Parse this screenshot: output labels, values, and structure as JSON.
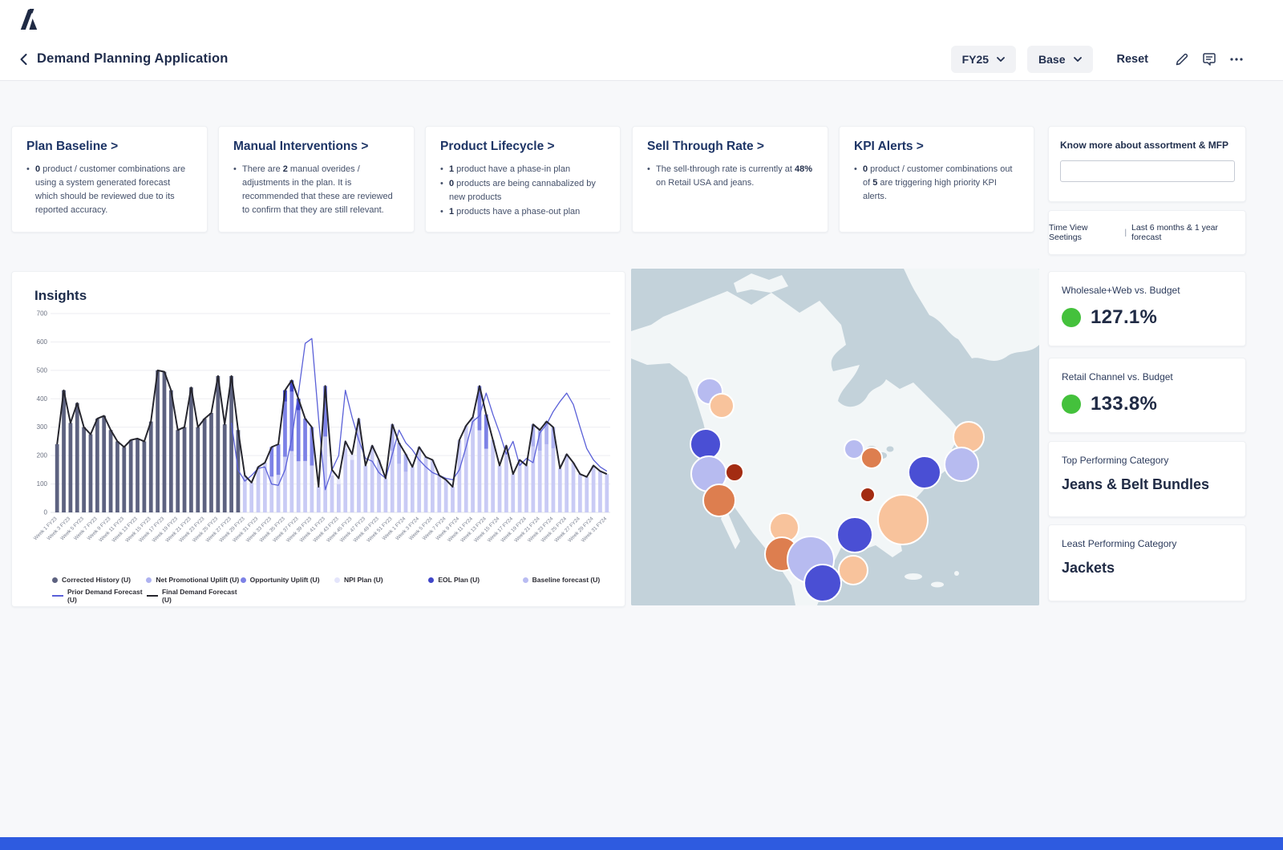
{
  "brand": {
    "logo_letter": "A"
  },
  "header": {
    "title": "Demand Planning Application",
    "fy_selector": "FY25",
    "scenario_selector": "Base",
    "reset_label": "Reset"
  },
  "cards": [
    {
      "title": "Plan Baseline >",
      "bullets": [
        {
          "pre": "",
          "b1": "0",
          "mid": " product / customer combinations are using a system generated forecast which should be reviewed due to its reported accuracy.",
          "b2": "",
          "post": ""
        }
      ]
    },
    {
      "title": "Manual Interventions >",
      "bullets": [
        {
          "pre": "There are ",
          "b1": "2",
          "mid": " manual overides / adjustments in the plan. It is recommended that these are reviewed to confirm that they are still relevant.",
          "b2": "",
          "post": ""
        }
      ]
    },
    {
      "title": "Product Lifecycle >",
      "bullets": [
        {
          "pre": "",
          "b1": "1",
          "mid": " product  have a phase-in plan",
          "b2": "",
          "post": ""
        },
        {
          "pre": "",
          "b1": "0",
          "mid": " products are being cannabalized by new products",
          "b2": "",
          "post": ""
        },
        {
          "pre": "",
          "b1": "1",
          "mid": " products have a phase-out plan",
          "b2": "",
          "post": ""
        }
      ]
    },
    {
      "title": "Sell Through Rate >",
      "bullets": [
        {
          "pre": "The sell-through rate is currently at ",
          "b1": "48%",
          "mid": " on Retail USA and jeans.",
          "b2": "",
          "post": ""
        }
      ]
    },
    {
      "title": "KPI Alerts >",
      "bullets": [
        {
          "pre": "",
          "b1": "0",
          "mid": " product / customer combinations out of ",
          "b2": "5",
          "post": " are triggering high priority KPI alerts."
        }
      ]
    }
  ],
  "side_top": {
    "know_more_label": "Know more about assortment & MFP",
    "input_value": "",
    "input_placeholder": "",
    "time_view_label": "Time View Seetings",
    "time_view_sep": "|",
    "time_view_value": "Last 6 months & 1 year forecast"
  },
  "insights": {
    "title": "Insights"
  },
  "chart_data": {
    "type": "bar",
    "title": "Insights",
    "ylim": [
      0,
      700
    ],
    "ytick_step": 100,
    "grid": true,
    "legend_position": "bottom",
    "categories": [
      "Week 1 FY23",
      "Week 2 FY23",
      "Week 3 FY23",
      "Week 4 FY23",
      "Week 5 FY23",
      "Week 6 FY23",
      "Week 7 FY23",
      "Week 8 FY23",
      "Week 9 FY23",
      "Week 10 FY23",
      "Week 11 FY23",
      "Week 12 FY23",
      "Week 13 FY23",
      "Week 14 FY23",
      "Week 15 FY23",
      "Week 16 FY23",
      "Week 17 FY23",
      "Week 18 FY23",
      "Week 19 FY23",
      "Week 20 FY23",
      "Week 21 FY23",
      "Week 22 FY23",
      "Week 23 FY23",
      "Week 24 FY23",
      "Week 25 FY23",
      "Week 26 FY23",
      "Week 27 FY23",
      "Week 28 FY23",
      "Week 29 FY23",
      "Week 30 FY23",
      "Week 31 FY23",
      "Week 32 FY23",
      "Week 33 FY23",
      "Week 34 FY23",
      "Week 35 FY23",
      "Week 36 FY23",
      "Week 37 FY23",
      "Week 38 FY23",
      "Week 39 FY23",
      "Week 40 FY23",
      "Week 41 FY23",
      "Week 42 FY23",
      "Week 43 FY23",
      "Week 44 FY23",
      "Week 45 FY23",
      "Week 46 FY23",
      "Week 47 FY23",
      "Week 48 FY23",
      "Week 49 FY23",
      "Week 50 FY23",
      "Week 51 FY23",
      "Week 52 FY23",
      "Week 1 FY24",
      "Week 2 FY24",
      "Week 3 FY24",
      "Week 4 FY24",
      "Week 5 FY24",
      "Week 6 FY24",
      "Week 7 FY24",
      "Week 8 FY24",
      "Week 9 FY24",
      "Week 10 FY24",
      "Week 11 FY24",
      "Week 12 FY24",
      "Week 13 FY24",
      "Week 14 FY24",
      "Week 15 FY24",
      "Week 16 FY24",
      "Week 17 FY24",
      "Week 18 FY24",
      "Week 19 FY24",
      "Week 20 FY24",
      "Week 21 FY24",
      "Week 22 FY24",
      "Week 23 FY24",
      "Week 24 FY24",
      "Week 25 FY24",
      "Week 26 FY24",
      "Week 27 FY24",
      "Week 28 FY24",
      "Week 29 FY24",
      "Week 30 FY24",
      "Week 31 FY24"
    ],
    "tick_every": 2,
    "series": [
      {
        "name": "Corrected History (U)",
        "type": "bar",
        "color": "#5d6280",
        "values": [
          240,
          430,
          315,
          385,
          300,
          275,
          330,
          340,
          290,
          250,
          230,
          255,
          260,
          250,
          320,
          500,
          495,
          430,
          290,
          300,
          440,
          300,
          330,
          350,
          480,
          310,
          480,
          290,
          null,
          null,
          null,
          null,
          null,
          null,
          null,
          null,
          null,
          null,
          null,
          null,
          null,
          null,
          null,
          null,
          null,
          null,
          null,
          null,
          null,
          null,
          null,
          null,
          null,
          null,
          null,
          null,
          null,
          null,
          null,
          null,
          null,
          null,
          null,
          null,
          null,
          null,
          null,
          null,
          null,
          null,
          null,
          null,
          null,
          null,
          null,
          null,
          null,
          null,
          null,
          null,
          null,
          null,
          null
        ]
      },
      {
        "name": "Baseline forecast (U)",
        "type": "bar",
        "color": "#c9cbf5",
        "values": [
          null,
          null,
          null,
          null,
          null,
          null,
          null,
          null,
          null,
          null,
          null,
          null,
          null,
          null,
          null,
          null,
          null,
          null,
          null,
          null,
          null,
          null,
          null,
          null,
          null,
          null,
          null,
          null,
          130,
          105,
          160,
          175,
          126,
          132,
          196,
          216,
          180,
          181,
          165,
          90,
          267,
          130,
          100,
          225,
          185,
          330,
          165,
          235,
          185,
          120,
          217,
          171,
          143,
          160,
          230,
          195,
          185,
          130,
          115,
          90,
          255,
          305,
          335,
          289,
          224,
          255,
          165,
          235,
          135,
          185,
          165,
          232,
          217,
          240,
          225,
          155,
          205,
          175,
          135,
          125,
          165,
          145,
          135
        ]
      },
      {
        "name": "Net Promotional Uplift (U)",
        "type": "bar",
        "color": "#aeb2f0",
        "sparse": {
          "50": 93,
          "51": 74,
          "52": 62,
          "71": 78,
          "72": 73,
          "73": 80,
          "74": 75
        }
      },
      {
        "name": "Opportunity Uplift (U)",
        "type": "bar",
        "color": "#7d82e6",
        "sparse": {
          "32": 104,
          "33": 108,
          "34": 194,
          "35": 209,
          "36": 180,
          "37": 149,
          "38": 135,
          "40": 178,
          "63": 156,
          "64": 121
        }
      },
      {
        "name": "NPI Plan (U)",
        "type": "bar",
        "color": "#e4e5fb",
        "sparse": {
          "41": 20,
          "42": 20,
          "43": 25,
          "44": 20
        }
      },
      {
        "name": "EOL Plan (U)",
        "type": "bar",
        "color": "#4046c8",
        "sparse": {
          "34": 40,
          "35": 40,
          "36": 40
        }
      },
      {
        "name": "Prior Demand Forecast (U)",
        "type": "line",
        "color": "#5a60d8",
        "values": [
          null,
          null,
          null,
          null,
          null,
          null,
          null,
          null,
          null,
          null,
          null,
          null,
          null,
          null,
          null,
          null,
          null,
          null,
          null,
          null,
          null,
          null,
          null,
          null,
          null,
          null,
          315,
          150,
          110,
          130,
          155,
          160,
          100,
          95,
          150,
          260,
          420,
          595,
          612,
          330,
          80,
          150,
          200,
          430,
          335,
          255,
          190,
          180,
          140,
          120,
          205,
          290,
          245,
          220,
          185,
          160,
          140,
          130,
          120,
          115,
          150,
          230,
          320,
          340,
          420,
          345,
          280,
          205,
          250,
          165,
          190,
          175,
          280,
          310,
          355,
          390,
          420,
          380,
          300,
          225,
          185,
          160,
          145
        ]
      },
      {
        "name": "Final Demand Forecast (U)",
        "type": "line",
        "color": "#26262e",
        "values": [
          240,
          430,
          315,
          385,
          300,
          275,
          330,
          340,
          290,
          250,
          230,
          255,
          260,
          250,
          320,
          500,
          495,
          430,
          290,
          300,
          440,
          300,
          330,
          350,
          480,
          310,
          480,
          290,
          130,
          105,
          160,
          175,
          230,
          240,
          430,
          465,
          400,
          330,
          300,
          90,
          445,
          150,
          120,
          250,
          205,
          330,
          165,
          235,
          185,
          120,
          310,
          245,
          205,
          160,
          230,
          195,
          185,
          130,
          115,
          90,
          255,
          305,
          335,
          445,
          345,
          255,
          165,
          235,
          135,
          185,
          165,
          310,
          290,
          320,
          300,
          155,
          205,
          175,
          135,
          125,
          165,
          145,
          135
        ]
      }
    ],
    "legend_row1": [
      {
        "label": "Corrected History (U)",
        "color": "#5d6280",
        "swatch": "dot"
      },
      {
        "label": "Net Promotional Uplift (U)",
        "color": "#aeb2f0",
        "swatch": "dot"
      },
      {
        "label": "Opportunity Uplift (U)",
        "color": "#7d82e6",
        "swatch": "dot"
      },
      {
        "label": "NPI Plan (U)",
        "color": "#e4e5fb",
        "swatch": "dot"
      },
      {
        "label": "EOL Plan (U)",
        "color": "#4046c8",
        "swatch": "dot"
      },
      {
        "label": "Baseline forecast (U)",
        "color": "#b9bcf2",
        "swatch": "dot"
      }
    ],
    "legend_row2": [
      {
        "label": "Prior Demand Forecast (U)",
        "color": "#5a60d8",
        "swatch": "line"
      },
      {
        "label": "Final Demand Forecast (U)",
        "color": "#26262e",
        "swatch": "line"
      }
    ]
  },
  "map": {
    "sea_color": "#c3d2da",
    "land_color": "#f2f6f7",
    "bubble_colors": {
      "blue": "#4a4fd4",
      "lightPurple": "#b7bbf0",
      "peach": "#f8c39c",
      "orange": "#dd7e4f",
      "darkRed": "#a32c12"
    },
    "bubbles": [
      {
        "x": 98,
        "y": 153,
        "r": 16,
        "c": "lightPurple"
      },
      {
        "x": 113,
        "y": 171,
        "r": 15,
        "c": "peach"
      },
      {
        "x": 93,
        "y": 219,
        "r": 19,
        "c": "blue"
      },
      {
        "x": 97,
        "y": 256,
        "r": 22,
        "c": "lightPurple"
      },
      {
        "x": 129,
        "y": 254,
        "r": 11,
        "c": "darkRed"
      },
      {
        "x": 110,
        "y": 289,
        "r": 20,
        "c": "orange"
      },
      {
        "x": 191,
        "y": 323,
        "r": 18,
        "c": "peach"
      },
      {
        "x": 188,
        "y": 356,
        "r": 21,
        "c": "orange"
      },
      {
        "x": 224,
        "y": 363,
        "r": 29,
        "c": "lightPurple"
      },
      {
        "x": 239,
        "y": 392,
        "r": 23,
        "c": "blue"
      },
      {
        "x": 277,
        "y": 376,
        "r": 18,
        "c": "peach"
      },
      {
        "x": 279,
        "y": 332,
        "r": 22,
        "c": "blue"
      },
      {
        "x": 278,
        "y": 225,
        "r": 12,
        "c": "lightPurple"
      },
      {
        "x": 300,
        "y": 236,
        "r": 13,
        "c": "orange"
      },
      {
        "x": 295,
        "y": 282,
        "r": 9,
        "c": "darkRed"
      },
      {
        "x": 339,
        "y": 313,
        "r": 31,
        "c": "peach"
      },
      {
        "x": 366,
        "y": 254,
        "r": 20,
        "c": "blue"
      },
      {
        "x": 421,
        "y": 210,
        "r": 19,
        "c": "peach"
      },
      {
        "x": 412,
        "y": 244,
        "r": 21,
        "c": "lightPurple"
      }
    ]
  },
  "kpi_cards": [
    {
      "label": "Wholesale+Web vs. Budget",
      "value": "127.1%",
      "status_color": "#44c13c"
    },
    {
      "label": "Retail Channel vs. Budget",
      "value": "133.8%",
      "status_color": "#44c13c"
    },
    {
      "label": "Top Performing Category",
      "value": "Jeans & Belt Bundles"
    },
    {
      "label": "Least Performing Category",
      "value": "Jackets"
    }
  ]
}
